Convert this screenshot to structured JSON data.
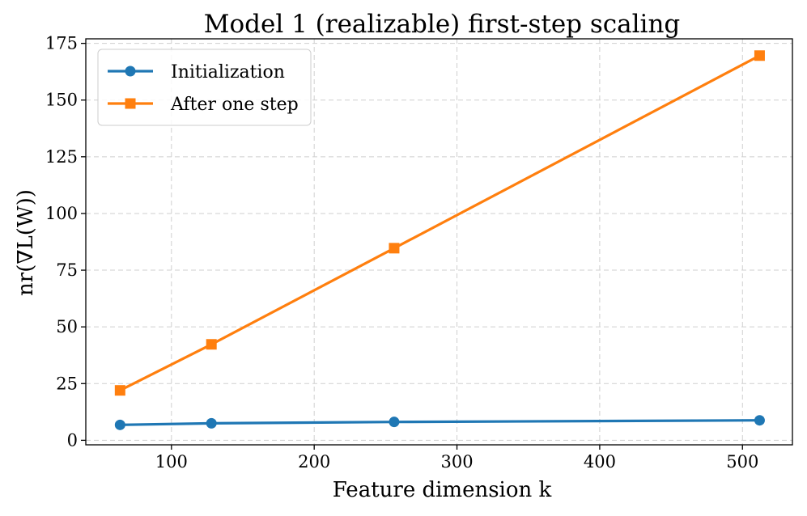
{
  "chart_data": {
    "type": "line",
    "title": "Model 1 (realizable) first-step scaling",
    "xlabel": "Feature dimension k",
    "ylabel": "nr(∇L(W))",
    "xlim": [
      40,
      535
    ],
    "ylim": [
      -2,
      177
    ],
    "xticks": [
      100,
      200,
      300,
      400,
      500
    ],
    "yticks": [
      0,
      25,
      50,
      75,
      100,
      125,
      150,
      175
    ],
    "grid": true,
    "legend_position": "upper-left",
    "series": [
      {
        "name": "Initialization",
        "color": "#1f77b4",
        "marker": "circle",
        "x": [
          64,
          128,
          256,
          512
        ],
        "y": [
          6.8,
          7.5,
          8.1,
          8.8
        ]
      },
      {
        "name": "After one step",
        "color": "#ff7f0e",
        "marker": "square",
        "x": [
          64,
          128,
          256,
          512
        ],
        "y": [
          22,
          42.3,
          84.7,
          169.6
        ]
      }
    ]
  }
}
